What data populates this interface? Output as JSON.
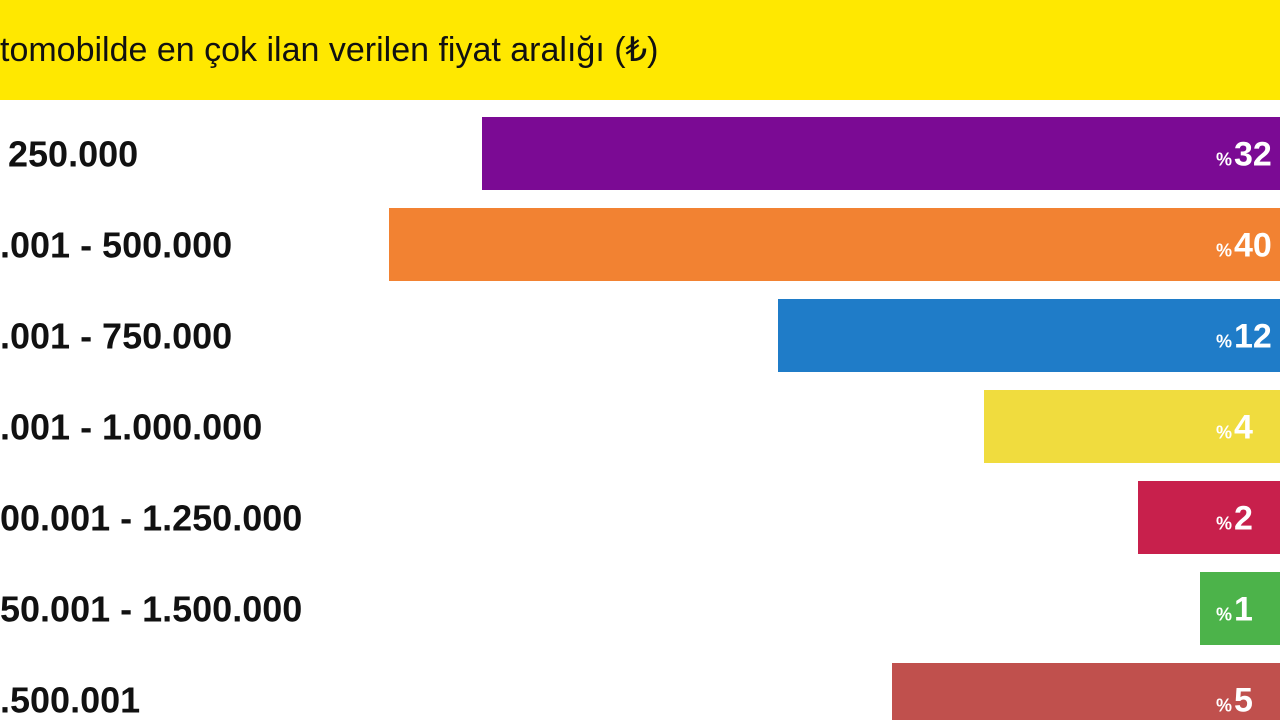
{
  "chart_data": {
    "type": "bar",
    "orientation": "horizontal",
    "title": "tomobilde en çok ilan verilen fiyat aralığı (₺)",
    "categories": [
      "250.000",
      ".001 - 500.000",
      ".001 - 750.000",
      ".001 - 1.000.000",
      "00.001 - 1.250.000",
      "50.001 - 1.500.000",
      ".500.001"
    ],
    "value_labels": [
      "32",
      "40",
      "12",
      "4",
      "2",
      "1",
      "5"
    ],
    "percent_sign": "%",
    "colors": [
      "#7b0a94",
      "#f28232",
      "#1f7cc8",
      "#f0dc3e",
      "#c8204c",
      "#4cb34a",
      "#c0504d"
    ]
  }
}
